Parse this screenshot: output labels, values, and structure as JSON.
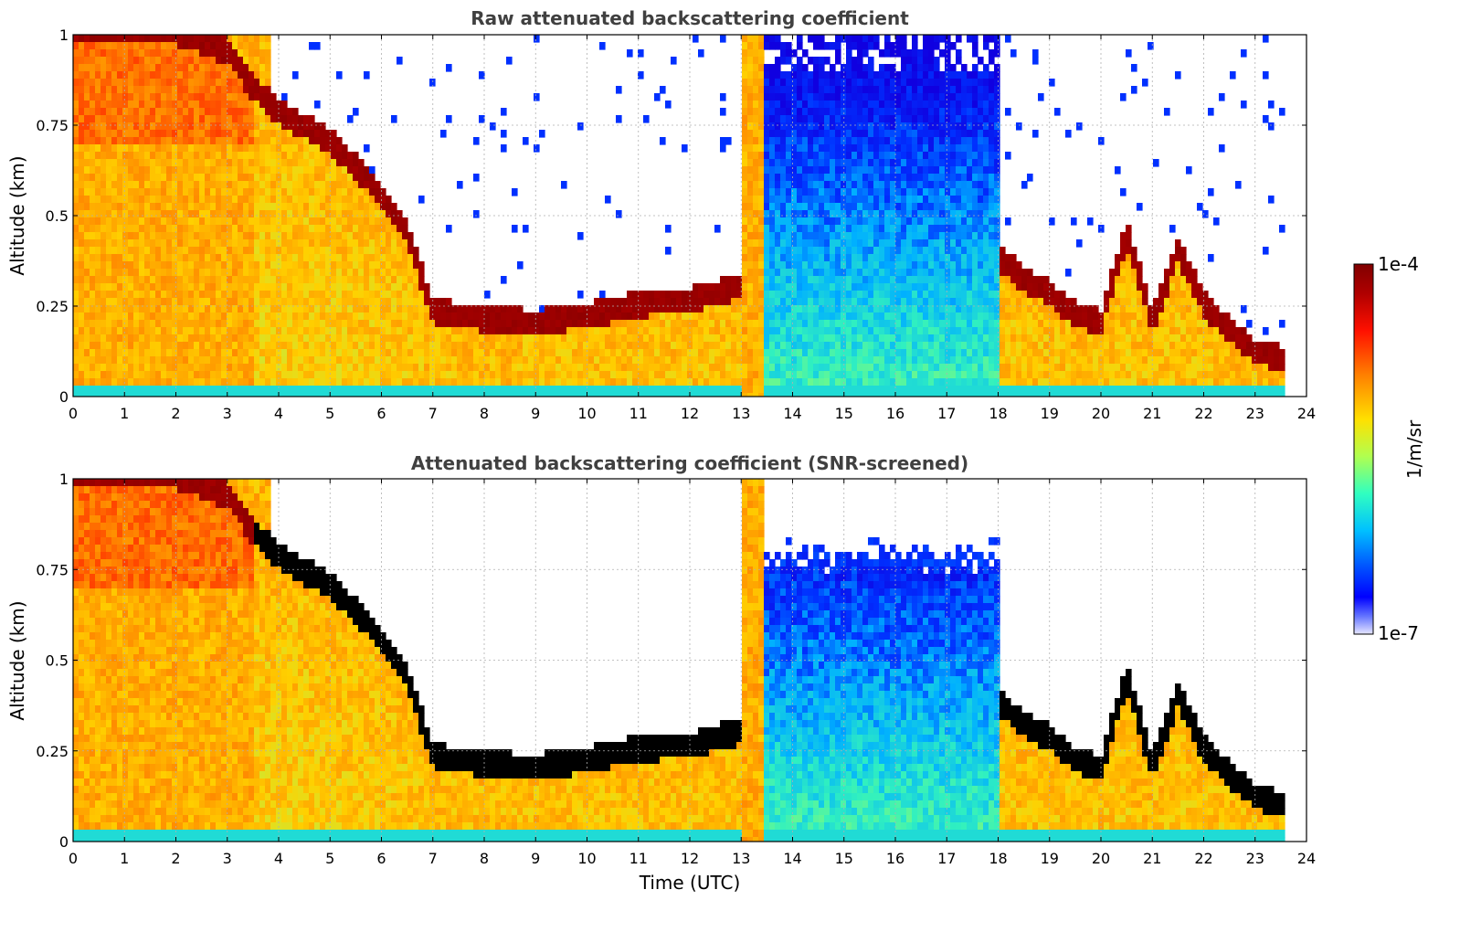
{
  "chart_data": [
    {
      "type": "heatmap",
      "title": "Raw attenuated backscattering coefficient",
      "xlabel": "",
      "ylabel": "Altitude (km)",
      "xlim": [
        0,
        24
      ],
      "ylim": [
        0,
        1
      ],
      "xticks": [
        "0",
        "1",
        "2",
        "3",
        "4",
        "5",
        "6",
        "7",
        "8",
        "9",
        "10",
        "11",
        "12",
        "13",
        "14",
        "15",
        "16",
        "17",
        "18",
        "19",
        "20",
        "21",
        "22",
        "23",
        "24"
      ],
      "yticks": [
        "0",
        "0.25",
        "0.5",
        "0.75",
        "1"
      ],
      "data_end_time": 23.5,
      "grid": true,
      "cloud_base_km": [
        [
          0,
          1.0
        ],
        [
          1,
          1.0
        ],
        [
          2,
          1.0
        ],
        [
          3,
          0.95
        ],
        [
          3.5,
          0.85
        ],
        [
          4,
          0.78
        ],
        [
          4.5,
          0.74
        ],
        [
          5,
          0.7
        ],
        [
          5.5,
          0.63
        ],
        [
          6,
          0.55
        ],
        [
          6.5,
          0.45
        ],
        [
          7,
          0.23
        ],
        [
          7.5,
          0.22
        ],
        [
          8,
          0.21
        ],
        [
          9,
          0.2
        ],
        [
          10,
          0.22
        ],
        [
          11,
          0.25
        ],
        [
          12,
          0.26
        ],
        [
          13,
          0.3
        ],
        [
          18,
          0.38
        ],
        [
          18.5,
          0.32
        ],
        [
          19,
          0.28
        ],
        [
          19.5,
          0.22
        ],
        [
          20,
          0.2
        ],
        [
          20.5,
          0.45
        ],
        [
          21,
          0.2
        ],
        [
          21.5,
          0.4
        ],
        [
          22,
          0.25
        ],
        [
          22.5,
          0.18
        ],
        [
          23,
          0.12
        ],
        [
          23.5,
          0.1
        ]
      ]
    },
    {
      "type": "heatmap",
      "title": "Attenuated backscattering coefficient (SNR-screened)",
      "xlabel": "Time (UTC)",
      "ylabel": "Altitude (km)",
      "xlim": [
        0,
        24
      ],
      "ylim": [
        0,
        1
      ],
      "xticks": [
        "0",
        "1",
        "2",
        "3",
        "4",
        "5",
        "6",
        "7",
        "8",
        "9",
        "10",
        "11",
        "12",
        "13",
        "14",
        "15",
        "16",
        "17",
        "18",
        "19",
        "20",
        "21",
        "22",
        "23",
        "24"
      ],
      "yticks": [
        "0",
        "0.25",
        "0.5",
        "0.75",
        "1"
      ],
      "data_end_time": 23.5,
      "grid": true,
      "screened_color": "#000000"
    }
  ],
  "colorbar": {
    "max_label": "1e-4",
    "min_label": "1e-7",
    "label": "1/m/sr",
    "scale": "log",
    "colormap": [
      "#800000",
      "#ff0000",
      "#ff8000",
      "#ffff00",
      "#80ff80",
      "#00ffff",
      "#0080ff",
      "#0000ff",
      "#e6e6ff"
    ]
  }
}
